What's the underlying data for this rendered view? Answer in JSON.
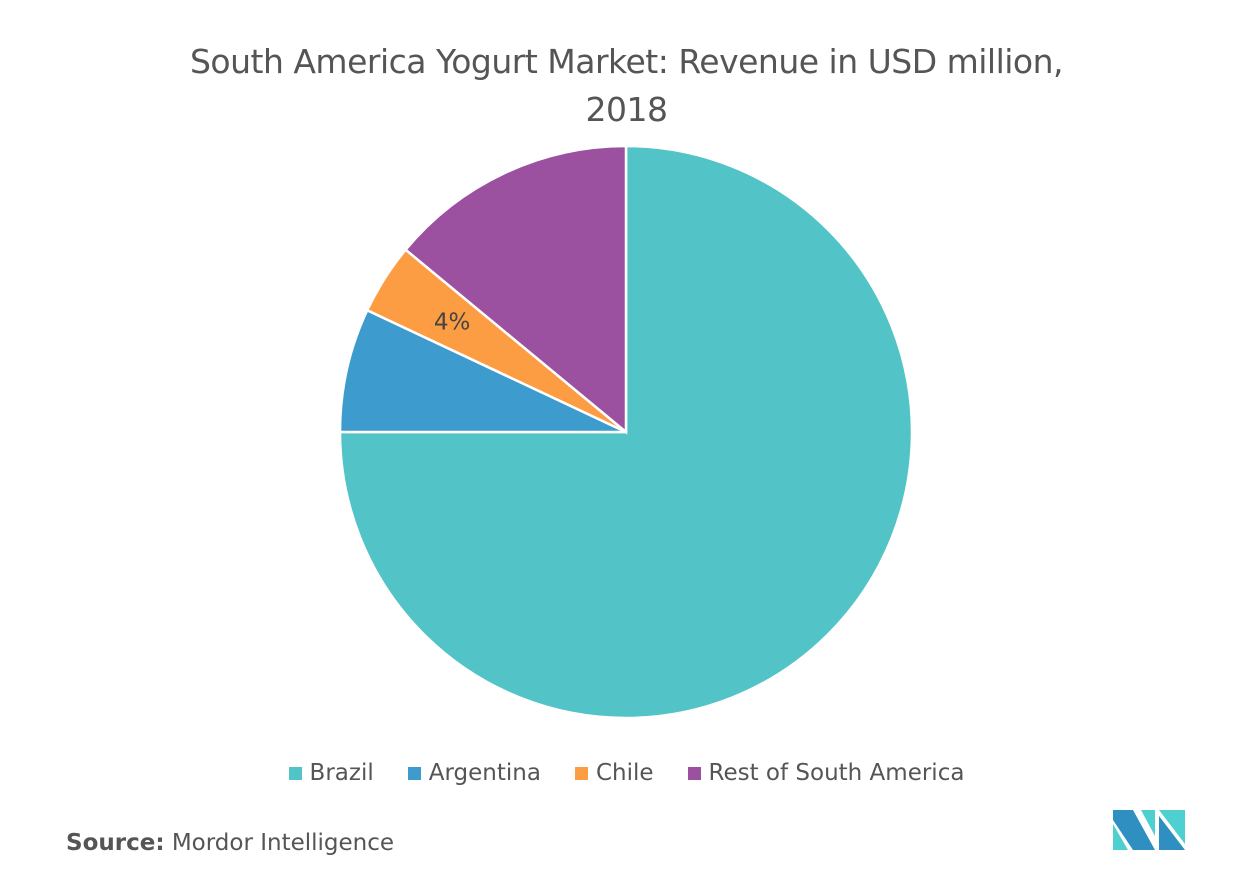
{
  "chart_data": {
    "type": "pie",
    "title": "South America Yogurt Market: Revenue in USD million,",
    "title_line2": "2018",
    "categories": [
      "Brazil",
      "Argentina",
      "Chile",
      "Rest of South America"
    ],
    "values": [
      75,
      7,
      4,
      14
    ],
    "colors": [
      "#52c3c6",
      "#3d9bce",
      "#fc9d44",
      "#9b51a0"
    ],
    "data_labels": [
      "",
      "",
      "4%",
      ""
    ],
    "legend_position": "bottom"
  },
  "source": {
    "label": "Source:",
    "value": "Mordor Intelligence"
  },
  "logo_text": "Mordor Intelligence"
}
